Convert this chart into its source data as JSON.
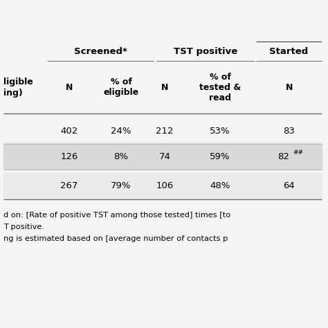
{
  "header1_group": "Screened*",
  "header2_group": "TST positive",
  "header3_group": "Started",
  "footnotes": [
    "d on: [Rate of positive TST among those tested] times [to",
    "T positive.",
    "ng is estimated based on [average number of contacts p"
  ],
  "bg_color": "#f5f5f5",
  "stripe_bg": "#d9d9d9",
  "white_bg": "#ffffff"
}
